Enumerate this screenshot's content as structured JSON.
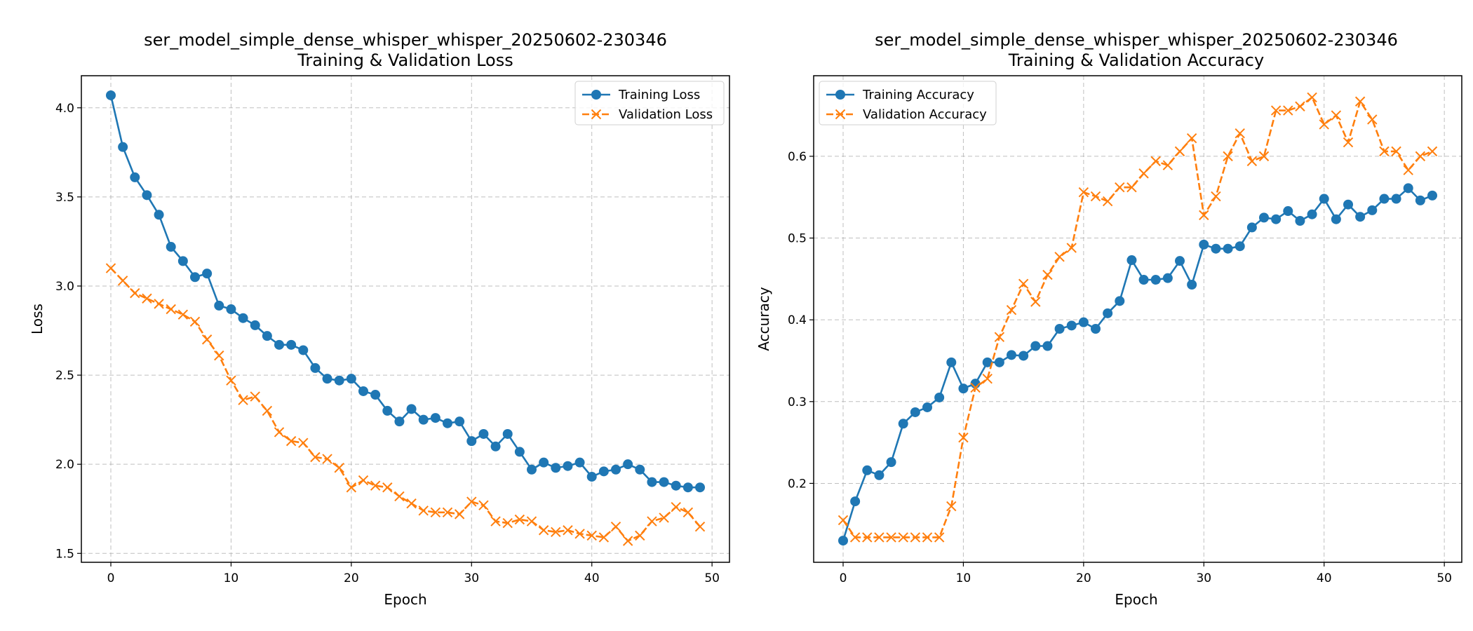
{
  "figure": {
    "charts": [
      {
        "title_line1": "ser_model_simple_dense_whisper_whisper_20250602-230346",
        "title_line2": "Training & Validation Loss",
        "xlabel": "Epoch",
        "ylabel": "Loss"
      },
      {
        "title_line1": "ser_model_simple_dense_whisper_whisper_20250602-230346",
        "title_line2": "Training & Validation Accuracy",
        "xlabel": "Epoch",
        "ylabel": "Accuracy"
      }
    ]
  },
  "chart_data": [
    {
      "type": "line",
      "title": "ser_model_simple_dense_whisper_whisper_20250602-230346 Training & Validation Loss",
      "xlabel": "Epoch",
      "ylabel": "Loss",
      "xlim": [
        -2.45,
        51.45
      ],
      "ylim": [
        1.45,
        4.18
      ],
      "xticks": [
        0,
        10,
        20,
        30,
        40,
        50
      ],
      "yticks": [
        1.5,
        2.0,
        2.5,
        3.0,
        3.5,
        4.0
      ],
      "ytick_labels": [
        "1.5",
        "2.0",
        "2.5",
        "3.0",
        "3.5",
        "4.0"
      ],
      "grid": true,
      "legend_position": "top-right",
      "x": [
        0,
        1,
        2,
        3,
        4,
        5,
        6,
        7,
        8,
        9,
        10,
        11,
        12,
        13,
        14,
        15,
        16,
        17,
        18,
        19,
        20,
        21,
        22,
        23,
        24,
        25,
        26,
        27,
        28,
        29,
        30,
        31,
        32,
        33,
        34,
        35,
        36,
        37,
        38,
        39,
        40,
        41,
        42,
        43,
        44,
        45,
        46,
        47,
        48,
        49
      ],
      "series": [
        {
          "name": "Training Loss",
          "color": "#1f77b4",
          "marker": "circle",
          "linestyle": "solid",
          "values": [
            4.07,
            3.78,
            3.61,
            3.51,
            3.4,
            3.22,
            3.14,
            3.05,
            3.07,
            2.89,
            2.87,
            2.82,
            2.78,
            2.72,
            2.67,
            2.67,
            2.64,
            2.54,
            2.48,
            2.47,
            2.48,
            2.41,
            2.39,
            2.3,
            2.24,
            2.31,
            2.25,
            2.26,
            2.23,
            2.24,
            2.13,
            2.17,
            2.1,
            2.17,
            2.07,
            1.97,
            2.01,
            1.98,
            1.99,
            2.01,
            1.93,
            1.96,
            1.97,
            2.0,
            1.97,
            1.9,
            1.9,
            1.88,
            1.87,
            1.87
          ]
        },
        {
          "name": "Validation Loss",
          "color": "#ff7f0e",
          "marker": "x",
          "linestyle": "dashed",
          "values": [
            3.1,
            3.03,
            2.96,
            2.93,
            2.9,
            2.87,
            2.84,
            2.8,
            2.7,
            2.61,
            2.47,
            2.36,
            2.38,
            2.3,
            2.18,
            2.13,
            2.12,
            2.04,
            2.03,
            1.98,
            1.87,
            1.91,
            1.88,
            1.87,
            1.82,
            1.78,
            1.74,
            1.73,
            1.73,
            1.72,
            1.79,
            1.77,
            1.68,
            1.67,
            1.69,
            1.68,
            1.63,
            1.62,
            1.63,
            1.61,
            1.6,
            1.59,
            1.65,
            1.57,
            1.6,
            1.68,
            1.7,
            1.76,
            1.73,
            1.65
          ]
        }
      ]
    },
    {
      "type": "line",
      "title": "ser_model_simple_dense_whisper_whisper_20250602-230346 Training & Validation Accuracy",
      "xlabel": "Epoch",
      "ylabel": "Accuracy",
      "xlim": [
        -2.45,
        51.45
      ],
      "ylim": [
        0.1035,
        0.6985
      ],
      "xticks": [
        0,
        10,
        20,
        30,
        40,
        50
      ],
      "yticks": [
        0.2,
        0.3,
        0.4,
        0.5,
        0.6
      ],
      "ytick_labels": [
        "0.2",
        "0.3",
        "0.4",
        "0.5",
        "0.6"
      ],
      "grid": true,
      "legend_position": "top-left",
      "x": [
        0,
        1,
        2,
        3,
        4,
        5,
        6,
        7,
        8,
        9,
        10,
        11,
        12,
        13,
        14,
        15,
        16,
        17,
        18,
        19,
        20,
        21,
        22,
        23,
        24,
        25,
        26,
        27,
        28,
        29,
        30,
        31,
        32,
        33,
        34,
        35,
        36,
        37,
        38,
        39,
        40,
        41,
        42,
        43,
        44,
        45,
        46,
        47,
        48,
        49
      ],
      "series": [
        {
          "name": "Training Accuracy",
          "color": "#1f77b4",
          "marker": "circle",
          "linestyle": "solid",
          "values": [
            0.13,
            0.178,
            0.216,
            0.21,
            0.226,
            0.273,
            0.287,
            0.293,
            0.305,
            0.348,
            0.316,
            0.322,
            0.348,
            0.348,
            0.357,
            0.356,
            0.368,
            0.368,
            0.389,
            0.393,
            0.397,
            0.389,
            0.408,
            0.423,
            0.473,
            0.449,
            0.449,
            0.451,
            0.472,
            0.443,
            0.492,
            0.487,
            0.487,
            0.49,
            0.513,
            0.525,
            0.523,
            0.533,
            0.521,
            0.529,
            0.548,
            0.523,
            0.541,
            0.526,
            0.534,
            0.548,
            0.548,
            0.561,
            0.546,
            0.552
          ]
        },
        {
          "name": "Validation Accuracy",
          "color": "#ff7f0e",
          "marker": "x",
          "linestyle": "dashed",
          "values": [
            0.155,
            0.134,
            0.134,
            0.134,
            0.134,
            0.134,
            0.134,
            0.134,
            0.134,
            0.172,
            0.256,
            0.317,
            0.328,
            0.379,
            0.412,
            0.444,
            0.422,
            0.455,
            0.477,
            0.488,
            0.556,
            0.551,
            0.545,
            0.562,
            0.562,
            0.579,
            0.594,
            0.589,
            0.606,
            0.622,
            0.528,
            0.551,
            0.6,
            0.628,
            0.594,
            0.6,
            0.656,
            0.656,
            0.661,
            0.672,
            0.639,
            0.65,
            0.617,
            0.667,
            0.645,
            0.606,
            0.606,
            0.583,
            0.6,
            0.606
          ]
        }
      ]
    }
  ]
}
